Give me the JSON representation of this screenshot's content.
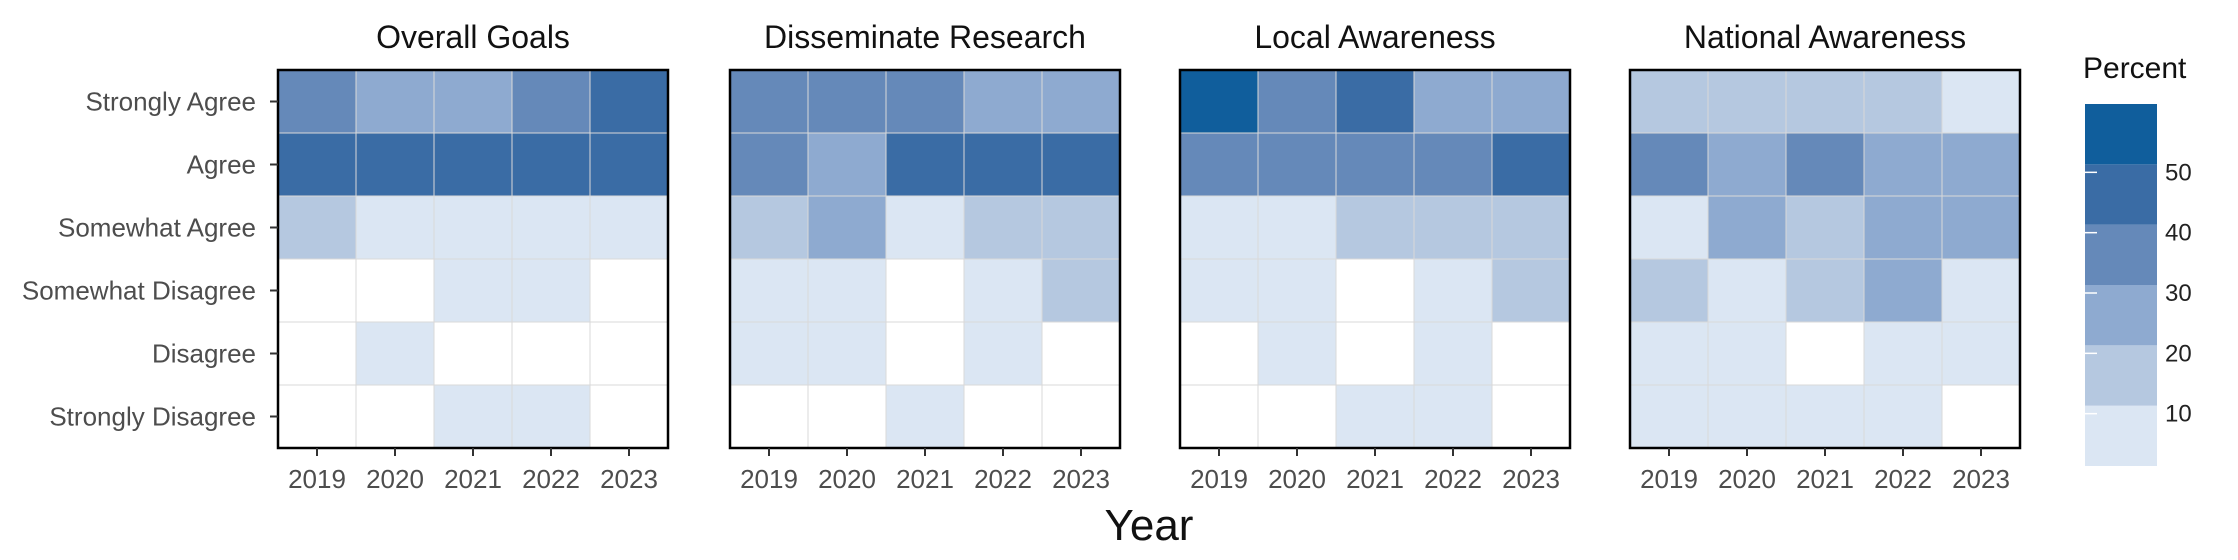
{
  "chart_data": {
    "type": "heatmap",
    "xlabel": "Year",
    "years": [
      "2019",
      "2020",
      "2021",
      "2022",
      "2023"
    ],
    "responses": [
      "Strongly Agree",
      "Agree",
      "Somewhat Agree",
      "Somewhat Disagree",
      "Disagree",
      "Strongly Disagree"
    ],
    "legend": {
      "title": "Percent",
      "ticks": [
        10,
        20,
        30,
        40,
        50
      ],
      "bins": [
        {
          "min": 0,
          "max": 10,
          "color": "#dbe6f3"
        },
        {
          "min": 10,
          "max": 20,
          "color": "#b5c8e0"
        },
        {
          "min": 20,
          "max": 30,
          "color": "#8eaad0"
        },
        {
          "min": 30,
          "max": 40,
          "color": "#6589b9"
        },
        {
          "min": 40,
          "max": 50,
          "color": "#3a6ca5"
        },
        {
          "min": 50,
          "max": 60,
          "color": "#105e9c"
        }
      ],
      "range": [
        0,
        60
      ],
      "placement": "right"
    },
    "panels": [
      {
        "title": "Overall Goals",
        "values": [
          [
            34,
            25,
            23,
            33,
            42
          ],
          [
            45,
            47,
            48,
            46,
            44
          ],
          [
            14,
            6,
            6,
            6,
            6
          ],
          [
            null,
            null,
            3,
            3,
            null
          ],
          [
            null,
            2,
            null,
            null,
            null
          ],
          [
            null,
            null,
            2,
            2,
            null
          ]
        ]
      },
      {
        "title": "Disseminate Research",
        "values": [
          [
            33,
            35,
            34,
            25,
            24
          ],
          [
            32,
            22,
            42,
            46,
            44
          ],
          [
            14,
            24,
            7,
            14,
            17
          ],
          [
            8,
            7,
            null,
            6,
            18
          ],
          [
            5,
            6,
            null,
            4,
            null
          ],
          [
            null,
            null,
            4,
            null,
            null
          ]
        ]
      },
      {
        "title": "Local Awareness",
        "values": [
          [
            56,
            34,
            42,
            23,
            24
          ],
          [
            33,
            33,
            33,
            34,
            44
          ],
          [
            6,
            6,
            14,
            13,
            14
          ],
          [
            4,
            5,
            null,
            4,
            14
          ],
          [
            null,
            3,
            null,
            3,
            null
          ],
          [
            null,
            null,
            4,
            4,
            null
          ]
        ]
      },
      {
        "title": "National Awareness",
        "values": [
          [
            14,
            14,
            14,
            15,
            6
          ],
          [
            33,
            24,
            33,
            24,
            24
          ],
          [
            7,
            25,
            14,
            25,
            26
          ],
          [
            14,
            6,
            14,
            24,
            7
          ],
          [
            5,
            5,
            null,
            4,
            5
          ],
          [
            4,
            4,
            5,
            4,
            null
          ]
        ]
      }
    ],
    "grid": false
  }
}
